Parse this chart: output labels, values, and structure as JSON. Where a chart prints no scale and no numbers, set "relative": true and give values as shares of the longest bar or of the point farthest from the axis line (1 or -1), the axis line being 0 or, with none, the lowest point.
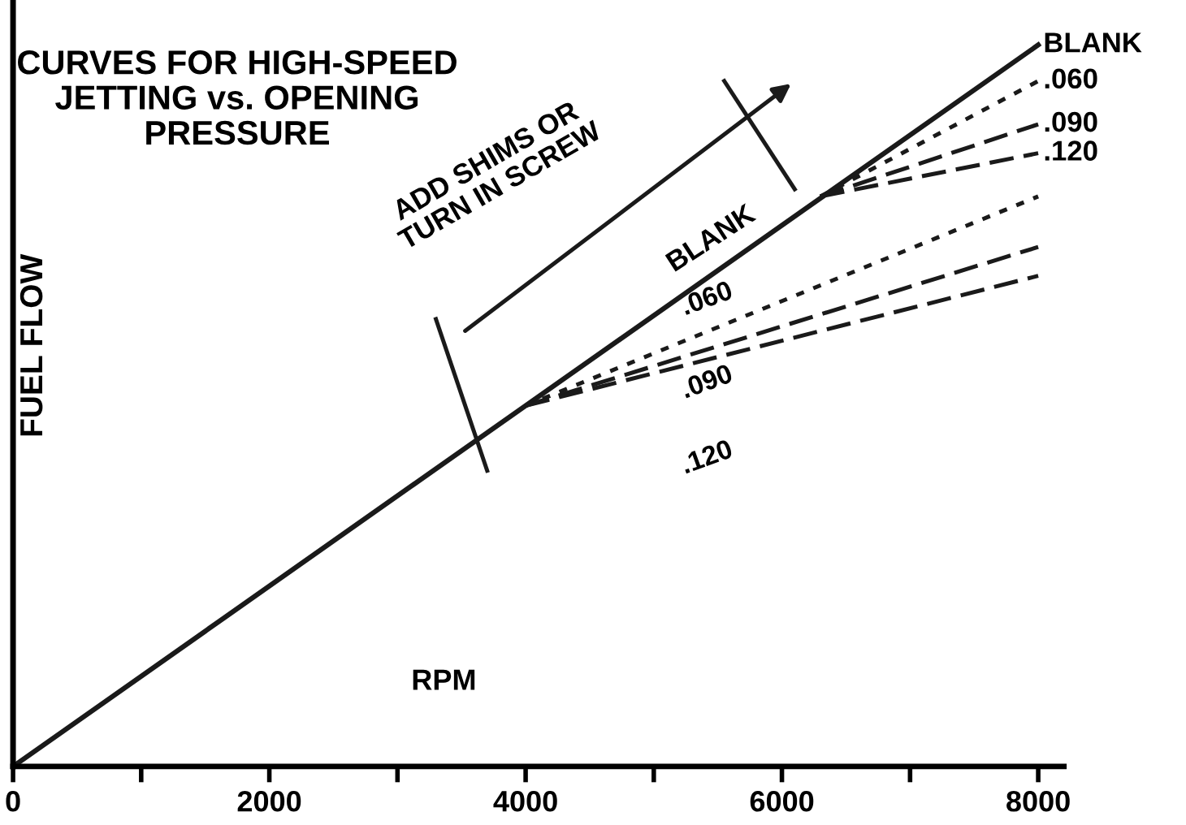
{
  "chart_data": {
    "type": "line",
    "title": "CURVES FOR HIGH-SPEED\nJETTING vs. OPENING\nPRESSURE",
    "xlabel": "RPM",
    "ylabel": "FUEL FLOW",
    "relative": true,
    "xlim": [
      0,
      8200
    ],
    "xticks": [
      0,
      {
        "value": 1000,
        "label": null
      },
      2000,
      {
        "value": 3000,
        "label": null
      },
      4000,
      {
        "value": 5000,
        "label": null
      },
      6000,
      {
        "value": 7000,
        "label": null
      },
      8000
    ],
    "series": [
      {
        "name": "BLANK",
        "color": "#1a1a1a",
        "line_style": "solid",
        "x": [
          0,
          8000
        ],
        "values": [
          0,
          1
        ]
      },
      {
        "name": ".060",
        "color": "#1a1a1a",
        "line_style": "dotted",
        "x": [
          6300,
          8000
        ],
        "values": [
          0.79,
          0.95
        ]
      },
      {
        "name": ".090",
        "color": "#1a1a1a",
        "line_style": "dashed",
        "x": [
          6300,
          8000
        ],
        "values": [
          0.79,
          0.89
        ]
      },
      {
        "name": ".120",
        "color": "#1a1a1a",
        "line_style": "dashed",
        "x": [
          6300,
          8000
        ],
        "values": [
          0.79,
          0.85
        ]
      },
      {
        "name": ".060",
        "color": "#1a1a1a",
        "line_style": "dotted",
        "x": [
          4000,
          8000
        ],
        "values": [
          0.5,
          0.79
        ]
      },
      {
        "name": ".090",
        "color": "#1a1a1a",
        "line_style": "dashed",
        "x": [
          4000,
          8000
        ],
        "values": [
          0.5,
          0.72
        ]
      },
      {
        "name": ".120",
        "color": "#1a1a1a",
        "line_style": "dashed",
        "x": [
          4000,
          8000
        ],
        "values": [
          0.5,
          0.68
        ]
      }
    ],
    "annotations": [
      "BLANK",
      "ADD SHIMS OR\nTURN IN SCREW"
    ],
    "grid": false,
    "legend": false
  }
}
